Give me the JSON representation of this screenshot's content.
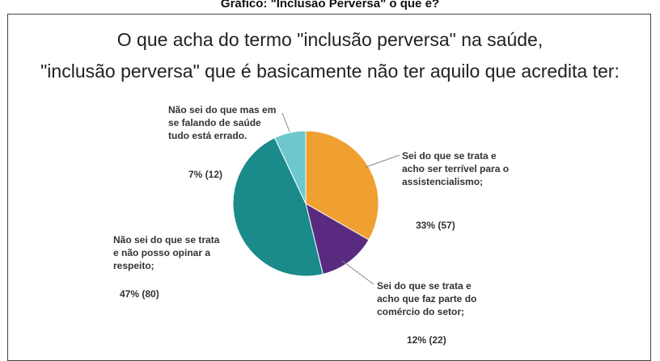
{
  "caption": "Gráfico: \"Inclusão Perversa\" o que é?",
  "chart_data": {
    "type": "pie",
    "title_line1": "O que acha do termo \"inclusão perversa\" na saúde,",
    "title_line2": "\"inclusão perversa\" que é basicamente não ter aquilo que acredita ter:",
    "slices": [
      {
        "label": "Sei do que se trata e acho ser terrível para o assistencialismo;",
        "percent": 33,
        "count": 57,
        "value_label": "33% (57)",
        "color": "#f0a030"
      },
      {
        "label": "Sei do que se trata e acho que faz parte do comércio do setor;",
        "percent": 12,
        "count": 22,
        "value_label": "12% (22)",
        "color": "#5a2a80"
      },
      {
        "label": "Não sei do que se trata e não posso opinar a respeito;",
        "percent": 47,
        "count": 80,
        "value_label": "47% (80)",
        "color": "#1a8a8a"
      },
      {
        "label": "Não sei do que mas em se falando de saúde tudo está errado.",
        "percent": 7,
        "count": 12,
        "value_label": "7% (12)",
        "color": "#6cc8cc"
      }
    ]
  }
}
